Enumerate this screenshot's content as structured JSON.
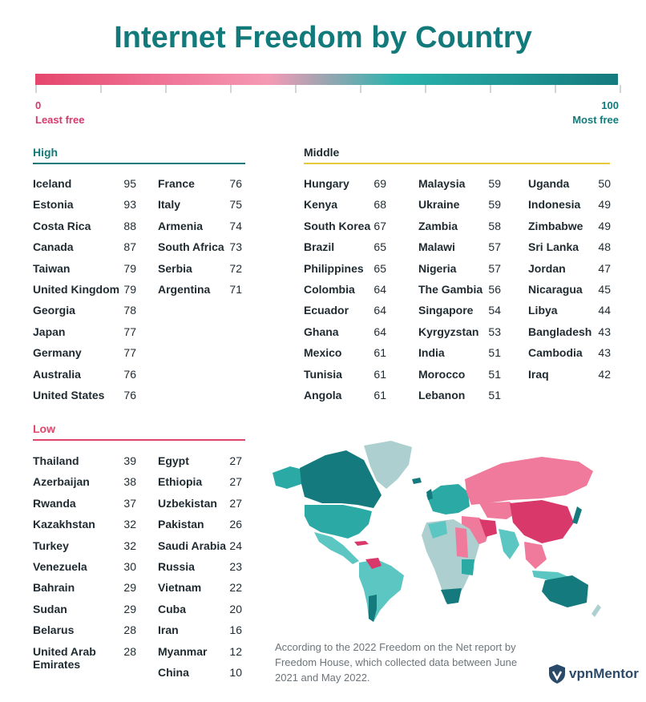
{
  "title": "Internet Freedom by Country",
  "scale": {
    "min_value": "0",
    "min_label": "Least free",
    "max_value": "100",
    "max_label": "Most free",
    "color_low": "#e5466d",
    "color_high": "#147a7e"
  },
  "chart_data": {
    "type": "table",
    "title": "Internet Freedom by Country",
    "groups": [
      {
        "name": "High",
        "color": "#137a7c",
        "rows": [
          {
            "country": "Iceland",
            "score": 95
          },
          {
            "country": "Estonia",
            "score": 93
          },
          {
            "country": "Costa Rica",
            "score": 88
          },
          {
            "country": "Canada",
            "score": 87
          },
          {
            "country": "Taiwan",
            "score": 79
          },
          {
            "country": "United Kingdom",
            "score": 79
          },
          {
            "country": "Georgia",
            "score": 78
          },
          {
            "country": "Japan",
            "score": 77
          },
          {
            "country": "Germany",
            "score": 77
          },
          {
            "country": "Australia",
            "score": 76
          },
          {
            "country": "United States",
            "score": 76
          },
          {
            "country": "France",
            "score": 76
          },
          {
            "country": "Italy",
            "score": 75
          },
          {
            "country": "Armenia",
            "score": 74
          },
          {
            "country": "South Africa",
            "score": 73
          },
          {
            "country": "Serbia",
            "score": 72
          },
          {
            "country": "Argentina",
            "score": 71
          }
        ]
      },
      {
        "name": "Middle",
        "color": "#e8c93a",
        "rows": [
          {
            "country": "Hungary",
            "score": 69
          },
          {
            "country": "Kenya",
            "score": 68
          },
          {
            "country": "South Korea",
            "score": 67
          },
          {
            "country": "Brazil",
            "score": 65
          },
          {
            "country": "Philippines",
            "score": 65
          },
          {
            "country": "Colombia",
            "score": 64
          },
          {
            "country": "Ecuador",
            "score": 64
          },
          {
            "country": "Ghana",
            "score": 64
          },
          {
            "country": "Mexico",
            "score": 61
          },
          {
            "country": "Tunisia",
            "score": 61
          },
          {
            "country": "Angola",
            "score": 61
          },
          {
            "country": "Malaysia",
            "score": 59
          },
          {
            "country": "Ukraine",
            "score": 59
          },
          {
            "country": "Zambia",
            "score": 58
          },
          {
            "country": "Malawi",
            "score": 57
          },
          {
            "country": "Nigeria",
            "score": 57
          },
          {
            "country": "The Gambia",
            "score": 56
          },
          {
            "country": "Singapore",
            "score": 54
          },
          {
            "country": "Kyrgyzstan",
            "score": 53
          },
          {
            "country": "India",
            "score": 51
          },
          {
            "country": "Morocco",
            "score": 51
          },
          {
            "country": "Lebanon",
            "score": 51
          },
          {
            "country": "Uganda",
            "score": 50
          },
          {
            "country": "Indonesia",
            "score": 49
          },
          {
            "country": "Zimbabwe",
            "score": 49
          },
          {
            "country": "Sri Lanka",
            "score": 48
          },
          {
            "country": "Jordan",
            "score": 47
          },
          {
            "country": "Nicaragua",
            "score": 45
          },
          {
            "country": "Libya",
            "score": 44
          },
          {
            "country": "Bangladesh",
            "score": 43
          },
          {
            "country": "Cambodia",
            "score": 43
          },
          {
            "country": "Iraq",
            "score": 42
          }
        ]
      },
      {
        "name": "Low",
        "color": "#e0456a",
        "rows": [
          {
            "country": "Thailand",
            "score": 39
          },
          {
            "country": "Azerbaijan",
            "score": 38
          },
          {
            "country": "Rwanda",
            "score": 37
          },
          {
            "country": "Kazakhstan",
            "score": 32
          },
          {
            "country": "Turkey",
            "score": 32
          },
          {
            "country": "Venezuela",
            "score": 30
          },
          {
            "country": "Bahrain",
            "score": 29
          },
          {
            "country": "Sudan",
            "score": 29
          },
          {
            "country": "Belarus",
            "score": 28
          },
          {
            "country": "United Arab Emirates",
            "score": 28
          },
          {
            "country": "Egypt",
            "score": 27
          },
          {
            "country": "Ethiopia",
            "score": 27
          },
          {
            "country": "Uzbekistan",
            "score": 27
          },
          {
            "country": "Pakistan",
            "score": 26
          },
          {
            "country": "Saudi Arabia",
            "score": 24
          },
          {
            "country": "Russia",
            "score": 23
          },
          {
            "country": "Vietnam",
            "score": 22
          },
          {
            "country": "Cuba",
            "score": 20
          },
          {
            "country": "Iran",
            "score": 16
          },
          {
            "country": "Myanmar",
            "score": 12
          },
          {
            "country": "China",
            "score": 10
          }
        ]
      }
    ]
  },
  "map_colors": {
    "high": "#147a7e",
    "mid_high": "#2aa9a5",
    "mid": "#5cc6c2",
    "low": "#f07a9b",
    "lowest": "#d9386a",
    "no_data": "#aecfcf"
  },
  "footnote": "According to the 2022 Freedom on the Net report by Freedom House, which collected data between June 2021 and May 2022.",
  "logo": {
    "text_a": "vpn",
    "text_b": "Mentor",
    "icon": "shield-logo-icon"
  }
}
